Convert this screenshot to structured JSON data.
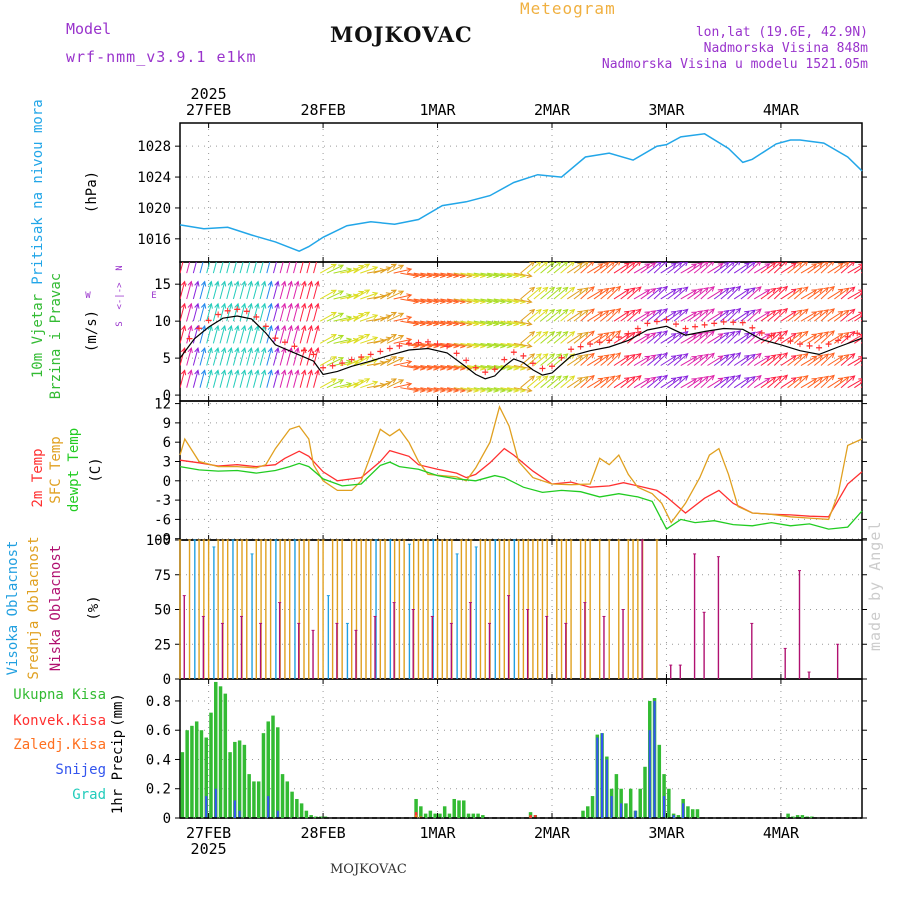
{
  "header": {
    "title": "MOJKOVAC",
    "subtitle": "Meteogram",
    "model_label": "Model",
    "model_name": "wrf-nmm_v3.9.1 e1km",
    "lonlat": "lon,lat (19.6E, 42.9N)",
    "elevation": "Nadmorska Visina 848m",
    "model_elevation": "Nadmorska Visina u modelu 1521.05m",
    "footer": "MOJKOVAC",
    "watermark": "made by Angel"
  },
  "colors": {
    "pressure": "#22a6e8",
    "temp2m": "#ff3030",
    "sfc_temp": "#e0a020",
    "dewpt": "#22cc22",
    "high_cloud": "#22a0e0",
    "mid_cloud": "#e0a020",
    "low_cloud": "#b01070",
    "total_precip": "#33bb33",
    "conv_precip": "#ff3030",
    "frozen_precip": "#ff7020",
    "snow": "#3355ee",
    "hail": "#22ccbb",
    "purple_text": "#9933cc",
    "title_orange": "#f0b040"
  },
  "time_axis": {
    "top_year": "2025",
    "bottom_year": "2025",
    "day_labels": [
      "27FEB",
      "28FEB",
      "1MAR",
      "2MAR",
      "3MAR",
      "4MAR"
    ],
    "day_hours": [
      6,
      30,
      54,
      78,
      102,
      126
    ],
    "x_range_hours": [
      0,
      143
    ]
  },
  "wind_compass": {
    "w": "W",
    "e": "E",
    "n": "N",
    "s": "S",
    "arrow": "<-|->"
  },
  "chart_data": [
    {
      "id": "pressure",
      "type": "line",
      "ylabel": "Pritisak na nivou mora",
      "yunit": "(hPa)",
      "ylim": [
        1013,
        1031
      ],
      "yticks": [
        1016,
        1020,
        1024,
        1028
      ],
      "grid": true,
      "series": [
        {
          "name": "Pritisak na nivou mora",
          "x": [
            0,
            5,
            10,
            15,
            20,
            25,
            27,
            30,
            35,
            40,
            45,
            50,
            55,
            60,
            65,
            70,
            75,
            80,
            85,
            90,
            95,
            100,
            102,
            105,
            110,
            115,
            118,
            120,
            125,
            128,
            130,
            135,
            140,
            143
          ],
          "y": [
            1017.8,
            1017.3,
            1017.5,
            1016.5,
            1015.6,
            1014.4,
            1015.0,
            1016.2,
            1017.7,
            1018.2,
            1017.9,
            1018.5,
            1020.3,
            1020.8,
            1021.6,
            1023.3,
            1024.3,
            1024.0,
            1026.6,
            1027.1,
            1026.2,
            1028.0,
            1028.2,
            1029.2,
            1029.6,
            1027.7,
            1025.9,
            1026.3,
            1028.3,
            1028.8,
            1028.8,
            1028.4,
            1026.6,
            1024.8
          ]
        }
      ]
    },
    {
      "id": "wind",
      "type": "line",
      "ylabel": "10m Vjetar Brzina i Pravac",
      "yunit": "(m/s)",
      "ylim": [
        -0.8,
        18
      ],
      "yticks": [
        0,
        5,
        10,
        15
      ],
      "grid": true,
      "series": [
        {
          "name": "10m Vjetar Brzina",
          "x": [
            0,
            3,
            6,
            9,
            12,
            15,
            18,
            20,
            24,
            28,
            30,
            33,
            36,
            40,
            44,
            48,
            52,
            56,
            60,
            62,
            64,
            66,
            68,
            70,
            72,
            74,
            76,
            78,
            82,
            86,
            90,
            94,
            98,
            102,
            106,
            110,
            114,
            118,
            122,
            126,
            130,
            134,
            138,
            143
          ],
          "y": [
            5.0,
            7.6,
            9.2,
            10.4,
            10.7,
            10.3,
            8.4,
            6.8,
            5.7,
            4.6,
            2.8,
            3.2,
            3.9,
            4.6,
            5.4,
            6.1,
            6.3,
            5.7,
            3.8,
            2.8,
            2.2,
            2.6,
            3.9,
            4.9,
            4.4,
            3.4,
            2.7,
            3.0,
            5.3,
            6.0,
            6.5,
            7.4,
            8.8,
            9.3,
            8.1,
            8.6,
            9.0,
            8.9,
            7.5,
            6.8,
            6.0,
            5.5,
            6.5,
            7.7
          ]
        }
      ]
    },
    {
      "id": "temperature",
      "type": "line",
      "ylabel": [
        "2m Temp",
        "SFC Temp",
        "dewpt Temp"
      ],
      "yunit": "(C)",
      "ylim": [
        -9.2,
        12.4
      ],
      "yticks": [
        -9,
        -6,
        -3,
        0,
        3,
        6,
        9,
        12
      ],
      "grid": true,
      "series": [
        {
          "name": "2m Temp",
          "x": [
            0,
            4,
            8,
            12,
            16,
            20,
            22,
            25,
            27,
            30,
            33,
            36,
            38,
            42,
            44,
            48,
            50,
            54,
            58,
            60,
            62,
            65,
            68,
            70,
            74,
            78,
            82,
            86,
            90,
            93,
            96,
            100,
            102,
            106,
            110,
            113,
            116,
            120,
            124,
            128,
            132,
            136,
            140,
            143
          ],
          "y": [
            3.2,
            2.8,
            2.3,
            2.5,
            2.2,
            2.5,
            3.5,
            4.6,
            3.8,
            1.4,
            0.0,
            0.3,
            0.5,
            3.0,
            4.7,
            3.8,
            2.5,
            1.8,
            1.2,
            0.5,
            1.0,
            2.8,
            5.0,
            4.0,
            1.5,
            -0.5,
            -0.2,
            -1.0,
            -0.8,
            -0.3,
            -0.8,
            -1.5,
            -2.5,
            -5.0,
            -2.7,
            -1.5,
            -3.5,
            -5.0,
            -5.2,
            -5.3,
            -5.5,
            -5.6,
            -0.5,
            1.4
          ]
        },
        {
          "name": "SFC Temp",
          "x": [
            0,
            1,
            4,
            8,
            12,
            16,
            18,
            20,
            23,
            25,
            27,
            28,
            30,
            33,
            36,
            38,
            40,
            42,
            44,
            46,
            48,
            50,
            52,
            55,
            58,
            60,
            62,
            65,
            67,
            69,
            71,
            74,
            78,
            82,
            86,
            88,
            90,
            92,
            94,
            96,
            99,
            101,
            103,
            106,
            109,
            111,
            113,
            115,
            117,
            120,
            124,
            128,
            132,
            136,
            138,
            140,
            143
          ],
          "y": [
            4.0,
            6.5,
            3.0,
            2.2,
            2.2,
            2.0,
            2.5,
            5.0,
            8.0,
            8.5,
            6.5,
            2.5,
            0.0,
            -1.5,
            -1.5,
            0.0,
            4.0,
            8.0,
            7.0,
            8.0,
            6.0,
            3.0,
            1.0,
            0.8,
            0.6,
            0.0,
            2.0,
            6.0,
            11.5,
            8.5,
            3.0,
            0.5,
            -0.5,
            -0.6,
            -0.5,
            3.5,
            2.5,
            4.0,
            1.0,
            -1.0,
            -2.0,
            -3.5,
            -6.5,
            -3.5,
            0.5,
            4.0,
            5.0,
            1.0,
            -4.0,
            -5.0,
            -5.2,
            -5.6,
            -5.8,
            -6.0,
            -2.0,
            5.5,
            6.5
          ]
        },
        {
          "name": "dewpt Temp",
          "x": [
            0,
            4,
            8,
            12,
            16,
            20,
            23,
            25,
            27,
            30,
            34,
            38,
            42,
            44,
            46,
            50,
            54,
            58,
            62,
            66,
            68,
            72,
            76,
            80,
            84,
            88,
            92,
            96,
            99,
            102,
            105,
            108,
            112,
            116,
            120,
            124,
            128,
            132,
            136,
            140,
            143
          ],
          "y": [
            2.2,
            1.7,
            1.5,
            1.6,
            1.2,
            1.6,
            2.2,
            2.7,
            2.2,
            0.3,
            -0.8,
            -0.5,
            2.4,
            2.9,
            2.2,
            1.8,
            0.8,
            0.3,
            0.0,
            0.8,
            0.5,
            -1.0,
            -1.8,
            -1.5,
            -1.7,
            -2.5,
            -2.0,
            -2.5,
            -3.2,
            -7.5,
            -6.0,
            -6.5,
            -6.2,
            -6.8,
            -7.0,
            -6.5,
            -7.0,
            -6.7,
            -7.5,
            -7.2,
            -4.7
          ]
        }
      ]
    },
    {
      "id": "clouds",
      "type": "bar",
      "ylabel": [
        "Visoka Oblacnost",
        "Srednja Oblacnost",
        "Niska Oblacnost"
      ],
      "yunit": "(%)",
      "ylim": [
        0,
        100
      ],
      "yticks": [
        0,
        25,
        50,
        75,
        100
      ],
      "grid": true,
      "series": [
        {
          "name": "Visoka Oblacnost",
          "x": [
            3,
            7,
            11,
            15,
            20,
            24,
            31,
            35,
            41,
            44,
            48,
            53,
            58,
            62,
            66,
            70
          ],
          "y": [
            100,
            95,
            100,
            90,
            100,
            100,
            60,
            40,
            100,
            100,
            97,
            100,
            90,
            95,
            100,
            100
          ]
        },
        {
          "name": "Srednja Oblacnost",
          "x": [
            0,
            2,
            4,
            5,
            6,
            8,
            9,
            10,
            12,
            13,
            14,
            16,
            17,
            18,
            19,
            21,
            22,
            23,
            25,
            26,
            27,
            29,
            30,
            32,
            33,
            34,
            36,
            37,
            38,
            39,
            40,
            42,
            43,
            45,
            46,
            47,
            49,
            50,
            51,
            52,
            54,
            55,
            56,
            57,
            59,
            60,
            61,
            63,
            64,
            65,
            67,
            68,
            69,
            71,
            72,
            73,
            74,
            75,
            76,
            77,
            79,
            80,
            81,
            82,
            84,
            85,
            86,
            88,
            90,
            92,
            94,
            95,
            96,
            97,
            100
          ],
          "y": [
            100,
            100,
            100,
            100,
            100,
            100,
            100,
            100,
            100,
            100,
            100,
            100,
            100,
            100,
            100,
            100,
            100,
            100,
            100,
            100,
            100,
            100,
            100,
            100,
            100,
            100,
            100,
            100,
            100,
            100,
            100,
            100,
            100,
            100,
            100,
            100,
            100,
            100,
            100,
            100,
            100,
            100,
            100,
            100,
            100,
            100,
            100,
            100,
            100,
            100,
            100,
            100,
            100,
            100,
            100,
            100,
            100,
            100,
            100,
            100,
            100,
            100,
            100,
            100,
            100,
            100,
            100,
            100,
            100,
            100,
            100,
            100,
            100,
            100,
            100
          ]
        },
        {
          "name": "Niska Oblacnost",
          "x": [
            1,
            5,
            9,
            13,
            17,
            21,
            25,
            28,
            33,
            37,
            41,
            45,
            49,
            53,
            57,
            61,
            65,
            69,
            73,
            77,
            81,
            85,
            89,
            93,
            97,
            103,
            105,
            108,
            110,
            113,
            120,
            127,
            130,
            132,
            138
          ],
          "y": [
            60,
            45,
            40,
            45,
            40,
            55,
            40,
            35,
            40,
            35,
            45,
            55,
            50,
            45,
            40,
            55,
            40,
            60,
            50,
            45,
            40,
            55,
            45,
            50,
            100,
            10,
            10,
            90,
            48,
            88,
            40,
            22,
            78,
            5,
            25
          ]
        }
      ]
    },
    {
      "id": "precip",
      "type": "bar",
      "ylabel": "1hr Precip",
      "yunit": "(mm)",
      "ylim": [
        0,
        0.95
      ],
      "yticks": [
        0,
        0.2,
        0.4,
        0.6,
        0.8
      ],
      "grid": true,
      "series": [
        {
          "name": "Ukupna Kisa",
          "x": [
            0,
            1,
            2,
            3,
            4,
            5,
            6,
            7,
            8,
            9,
            10,
            11,
            12,
            13,
            14,
            15,
            16,
            17,
            18,
            19,
            20,
            21,
            22,
            23,
            24,
            25,
            26,
            27,
            28,
            29,
            30,
            49,
            50,
            51,
            52,
            53,
            54,
            55,
            56,
            57,
            58,
            59,
            60,
            61,
            62,
            63,
            73,
            74,
            84,
            85,
            86,
            87,
            88,
            89,
            90,
            91,
            92,
            93,
            94,
            95,
            96,
            97,
            98,
            99,
            100,
            101,
            102,
            103,
            104,
            105,
            106,
            107,
            108,
            127,
            128,
            129,
            130,
            131,
            132
          ],
          "y": [
            0.45,
            0.6,
            0.63,
            0.66,
            0.6,
            0.55,
            0.72,
            0.93,
            0.9,
            0.85,
            0.45,
            0.52,
            0.53,
            0.5,
            0.3,
            0.25,
            0.25,
            0.58,
            0.66,
            0.7,
            0.62,
            0.3,
            0.25,
            0.18,
            0.13,
            0.1,
            0.05,
            0.02,
            0.01,
            0.01,
            0.01,
            0.13,
            0.08,
            0.03,
            0.05,
            0.03,
            0.03,
            0.08,
            0.03,
            0.13,
            0.12,
            0.12,
            0.03,
            0.03,
            0.03,
            0.02,
            0.04,
            0.02,
            0.05,
            0.08,
            0.15,
            0.57,
            0.58,
            0.42,
            0.2,
            0.3,
            0.2,
            0.1,
            0.2,
            0.05,
            0.2,
            0.35,
            0.8,
            0.82,
            0.5,
            0.3,
            0.2,
            0.03,
            0.02,
            0.13,
            0.08,
            0.06,
            0.06,
            0.03,
            0.01,
            0.02,
            0.02,
            0.01,
            0.01
          ]
        },
        {
          "name": "Konvek.Kisa",
          "x": [
            49,
            73,
            74
          ],
          "y": [
            0.04,
            0.02,
            0.02
          ]
        },
        {
          "name": "Zaledj.Kisa",
          "x": [
            49,
            50
          ],
          "y": [
            0.02,
            0.01
          ]
        },
        {
          "name": "Snijeg",
          "x": [
            5,
            7,
            11,
            12,
            18,
            20,
            87,
            88,
            89,
            90,
            92,
            95,
            98,
            99,
            101,
            103,
            105
          ],
          "y": [
            0.15,
            0.2,
            0.12,
            0.05,
            0.15,
            0.05,
            0.55,
            0.58,
            0.4,
            0.15,
            0.1,
            0.05,
            0.6,
            0.8,
            0.15,
            0.02,
            0.1
          ]
        },
        {
          "name": "Grad",
          "x": [],
          "y": []
        }
      ]
    }
  ]
}
